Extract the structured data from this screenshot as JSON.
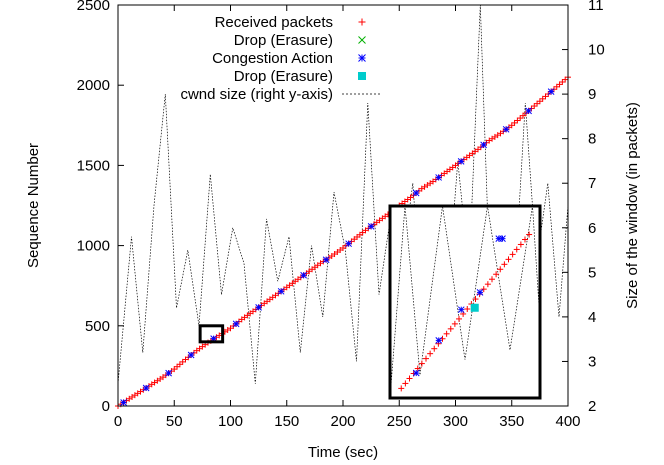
{
  "chart_data": {
    "type": "scatter",
    "title": "",
    "xlabel": "Time (sec)",
    "ylabel": "Sequence Number",
    "y2label": "Size of the window (in packets)",
    "xlim": [
      0,
      400
    ],
    "ylim": [
      0,
      2500
    ],
    "y2lim": [
      2,
      11
    ],
    "x_ticks": [
      0,
      50,
      100,
      150,
      200,
      250,
      300,
      350,
      400
    ],
    "y_ticks": [
      0,
      500,
      1000,
      1500,
      2000,
      2500
    ],
    "y2_ticks": [
      2,
      3,
      4,
      5,
      6,
      7,
      8,
      9,
      10,
      11
    ],
    "grid": false,
    "legend_position": "top-left",
    "series": [
      {
        "name": "Received packets",
        "marker": "plus",
        "color": "#ff0000",
        "axis": "left",
        "x": [
          0,
          10,
          20,
          30,
          40,
          50,
          60,
          70,
          80,
          90,
          100,
          110,
          120,
          130,
          140,
          150,
          160,
          170,
          180,
          190,
          200,
          210,
          220,
          230,
          240,
          250,
          260,
          270,
          280,
          290,
          300,
          310,
          320,
          330,
          340,
          350,
          360,
          370,
          380,
          390,
          400
        ],
        "y": [
          0,
          45,
          90,
          135,
          180,
          230,
          290,
          345,
          395,
          440,
          485,
          540,
          590,
          640,
          690,
          740,
          790,
          840,
          890,
          935,
          985,
          1040,
          1095,
          1145,
          1195,
          1250,
          1300,
          1355,
          1400,
          1450,
          1500,
          1550,
          1600,
          1655,
          1700,
          1750,
          1810,
          1870,
          1930,
          1990,
          2050
        ]
      },
      {
        "name": "Drop (Erasure)",
        "marker": "cross",
        "color": "#00b000",
        "axis": "left",
        "x": [],
        "y": []
      },
      {
        "name": "Congestion Action",
        "marker": "star",
        "color": "#0000ff",
        "axis": "left",
        "x": [
          5,
          25,
          45,
          65,
          85,
          105,
          125,
          145,
          165,
          185,
          205,
          225,
          245,
          265,
          285,
          305,
          325,
          345,
          365,
          385
        ],
        "y": [
          22,
          112,
          205,
          318,
          420,
          512,
          615,
          715,
          815,
          912,
          1012,
          1120,
          1220,
          1328,
          1425,
          1525,
          1628,
          1725,
          1840,
          1960
        ]
      },
      {
        "name": "Drop (Erasure)",
        "marker": "square",
        "color": "#00cccc",
        "axis": "left",
        "x": [],
        "y": []
      },
      {
        "name": "cwnd size (right y-axis)",
        "marker": "line",
        "color": "#000000",
        "axis": "right",
        "x": [
          0,
          12,
          22,
          32,
          42,
          52,
          62,
          72,
          82,
          92,
          102,
          112,
          122,
          132,
          142,
          152,
          162,
          172,
          182,
          192,
          202,
          212,
          222,
          232,
          242,
          252,
          262,
          272,
          282,
          292,
          302,
          312,
          322,
          332,
          342,
          352,
          362,
          372,
          382,
          392,
          400
        ],
        "y": [
          2.5,
          5.8,
          3.2,
          6.5,
          9.0,
          4.2,
          5.5,
          3.8,
          7.2,
          4.5,
          6.0,
          5.2,
          2.5,
          6.2,
          4.8,
          5.8,
          3.2,
          5.6,
          4.0,
          6.8,
          5.5,
          3.0,
          8.8,
          4.5,
          6.2,
          5.0,
          7.0,
          3.5,
          6.0,
          4.2,
          7.5,
          5.0,
          11.0,
          3.8,
          6.5,
          4.5,
          8.8,
          5.2,
          7.0,
          4.0,
          6.5
        ]
      }
    ]
  }
}
